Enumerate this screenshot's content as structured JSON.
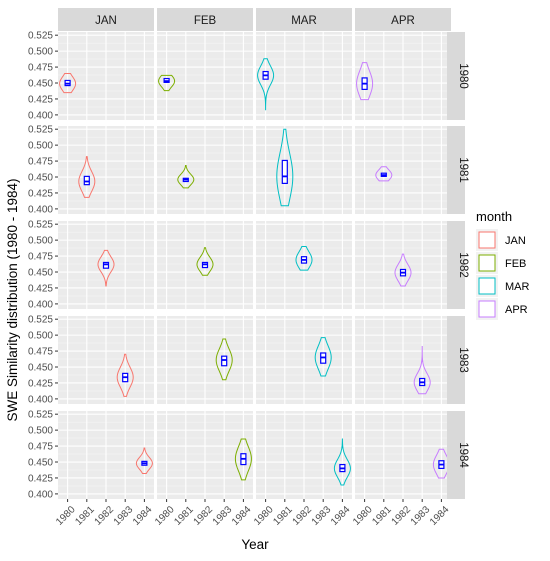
{
  "chart_data": {
    "type": "violin",
    "xlabel": "Year",
    "ylabel": "SWE Similarity distribution (1980 - 1984)",
    "x_ticks": [
      "1980",
      "1981",
      "1982",
      "1983",
      "1984"
    ],
    "y_ticks": [
      "0.400",
      "0.425",
      "0.450",
      "0.475",
      "0.500",
      "0.525"
    ],
    "ylim": [
      0.392,
      0.53
    ],
    "facet_columns": [
      "JAN",
      "FEB",
      "MAR",
      "APR"
    ],
    "facet_rows": [
      "1980",
      "1981",
      "1982",
      "1983",
      "1984"
    ],
    "legend": {
      "title": "month",
      "position": "right",
      "items": [
        {
          "label": "JAN",
          "color": "#F8766D"
        },
        {
          "label": "FEB",
          "color": "#7CAE00"
        },
        {
          "label": "MAR",
          "color": "#00BFC4"
        },
        {
          "label": "APR",
          "color": "#C77CFF"
        }
      ]
    },
    "box_color": "#0000FF",
    "grid": true,
    "series": [
      {
        "month": "JAN",
        "row": "1980",
        "x": "1980",
        "min": 0.435,
        "max": 0.465,
        "median": 0.449,
        "q1": 0.446,
        "q3": 0.454
      },
      {
        "month": "FEB",
        "row": "1980",
        "x": "1980",
        "min": 0.438,
        "max": 0.462,
        "median": 0.453,
        "q1": 0.451,
        "q3": 0.457
      },
      {
        "month": "MAR",
        "row": "1980",
        "x": "1980",
        "min": 0.408,
        "max": 0.488,
        "median": 0.462,
        "q1": 0.456,
        "q3": 0.468
      },
      {
        "month": "APR",
        "row": "1980",
        "x": "1980",
        "min": 0.424,
        "max": 0.482,
        "median": 0.449,
        "q1": 0.44,
        "q3": 0.458
      },
      {
        "month": "JAN",
        "row": "1981",
        "x": "1981",
        "min": 0.418,
        "max": 0.482,
        "median": 0.443,
        "q1": 0.438,
        "q3": 0.451
      },
      {
        "month": "FEB",
        "row": "1981",
        "x": "1981",
        "min": 0.433,
        "max": 0.468,
        "median": 0.446,
        "q1": 0.443,
        "q3": 0.448
      },
      {
        "month": "MAR",
        "row": "1981",
        "x": "1981",
        "min": 0.405,
        "max": 0.525,
        "median": 0.451,
        "q1": 0.44,
        "q3": 0.476
      },
      {
        "month": "APR",
        "row": "1981",
        "x": "1981",
        "min": 0.444,
        "max": 0.466,
        "median": 0.453,
        "q1": 0.451,
        "q3": 0.456
      },
      {
        "month": "JAN",
        "row": "1982",
        "x": "1982",
        "min": 0.428,
        "max": 0.484,
        "median": 0.462,
        "q1": 0.456,
        "q3": 0.465
      },
      {
        "month": "FEB",
        "row": "1982",
        "x": "1982",
        "min": 0.445,
        "max": 0.488,
        "median": 0.462,
        "q1": 0.457,
        "q3": 0.465
      },
      {
        "month": "MAR",
        "row": "1982",
        "x": "1982",
        "min": 0.453,
        "max": 0.49,
        "median": 0.469,
        "q1": 0.464,
        "q3": 0.474
      },
      {
        "month": "APR",
        "row": "1982",
        "x": "1982",
        "min": 0.428,
        "max": 0.478,
        "median": 0.449,
        "q1": 0.444,
        "q3": 0.454
      },
      {
        "month": "JAN",
        "row": "1983",
        "x": "1983",
        "min": 0.404,
        "max": 0.47,
        "median": 0.434,
        "q1": 0.427,
        "q3": 0.44
      },
      {
        "month": "FEB",
        "row": "1983",
        "x": "1983",
        "min": 0.43,
        "max": 0.494,
        "median": 0.461,
        "q1": 0.452,
        "q3": 0.467
      },
      {
        "month": "MAR",
        "row": "1983",
        "x": "1983",
        "min": 0.436,
        "max": 0.496,
        "median": 0.465,
        "q1": 0.456,
        "q3": 0.472
      },
      {
        "month": "APR",
        "row": "1983",
        "x": "1983",
        "min": 0.408,
        "max": 0.483,
        "median": 0.426,
        "q1": 0.421,
        "q3": 0.432
      },
      {
        "month": "JAN",
        "row": "1984",
        "x": "1984",
        "min": 0.432,
        "max": 0.472,
        "median": 0.448,
        "q1": 0.445,
        "q3": 0.451
      },
      {
        "month": "FEB",
        "row": "1984",
        "x": "1984",
        "min": 0.422,
        "max": 0.486,
        "median": 0.455,
        "q1": 0.446,
        "q3": 0.463
      },
      {
        "month": "MAR",
        "row": "1984",
        "x": "1984",
        "min": 0.414,
        "max": 0.486,
        "median": 0.44,
        "q1": 0.435,
        "q3": 0.446
      },
      {
        "month": "APR",
        "row": "1984",
        "x": "1984",
        "min": 0.425,
        "max": 0.47,
        "median": 0.446,
        "q1": 0.44,
        "q3": 0.452
      }
    ]
  }
}
